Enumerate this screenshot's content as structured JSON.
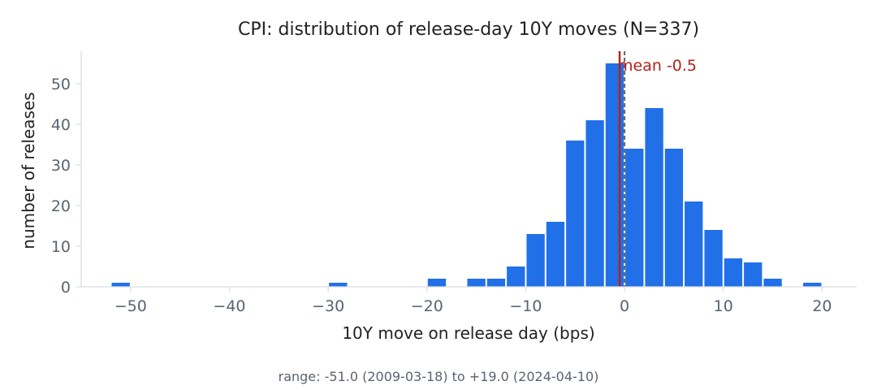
{
  "chart_data": {
    "type": "bar",
    "title": "CPI: distribution of release-day 10Y moves (N=337)",
    "xlabel": "10Y move on release day (bps)",
    "ylabel": "number of releases",
    "xlim": [
      -55,
      23.5
    ],
    "ylim": [
      0,
      58
    ],
    "x_ticks": [
      -50,
      -40,
      -30,
      -20,
      -10,
      0,
      10,
      20
    ],
    "x_tick_labels": [
      "−50",
      "−40",
      "−30",
      "−20",
      "−10",
      "0",
      "10",
      "20"
    ],
    "y_ticks": [
      0,
      10,
      20,
      30,
      40,
      50
    ],
    "y_tick_labels": [
      "0",
      "10",
      "20",
      "30",
      "40",
      "50"
    ],
    "bin_width": 2,
    "bins": [
      {
        "x": -52,
        "count": 1
      },
      {
        "x": -30,
        "count": 1
      },
      {
        "x": -20,
        "count": 2
      },
      {
        "x": -16,
        "count": 2
      },
      {
        "x": -14,
        "count": 2
      },
      {
        "x": -12,
        "count": 5
      },
      {
        "x": -10,
        "count": 13
      },
      {
        "x": -8,
        "count": 16
      },
      {
        "x": -6,
        "count": 36
      },
      {
        "x": -4,
        "count": 41
      },
      {
        "x": -2,
        "count": 55
      },
      {
        "x": 0,
        "count": 34
      },
      {
        "x": 2,
        "count": 44
      },
      {
        "x": 4,
        "count": 34
      },
      {
        "x": 6,
        "count": 21
      },
      {
        "x": 8,
        "count": 14
      },
      {
        "x": 10,
        "count": 7
      },
      {
        "x": 12,
        "count": 6
      },
      {
        "x": 14,
        "count": 2
      },
      {
        "x": 18,
        "count": 1
      }
    ],
    "mean": -0.5,
    "mean_label": "mean -0.5",
    "zero_line": 0,
    "bar_color": "#2170e8",
    "mean_color": "#b5221b",
    "zero_line_color": "#5a6372",
    "grid": false,
    "footnote": "range: -51.0 (2009-03-18) to +19.0 (2024-04-10)"
  }
}
